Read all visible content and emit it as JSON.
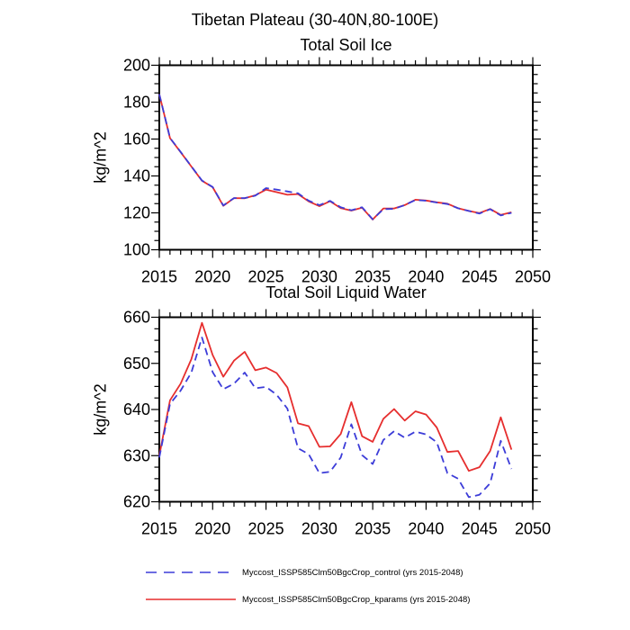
{
  "page": {
    "main_title": "Tibetan Plateau (30-40N,80-100E)"
  },
  "legend": {
    "entries": [
      {
        "label": "Myccost_ISSP585Clm50BgcCrop_control (yrs 2015-2048)",
        "color": "#3c3cd8",
        "style": "dashed"
      },
      {
        "label": "Myccost_ISSP585Clm50BgcCrop_kparams (yrs 2015-2048)",
        "color": "#e62e2e",
        "style": "solid"
      }
    ]
  },
  "chart_data": [
    {
      "type": "line",
      "title": "Total Soil Ice",
      "ylabel": "kg/m^2",
      "xlim": [
        2015,
        2050
      ],
      "ylim": [
        100,
        200
      ],
      "xticks": [
        2015,
        2020,
        2025,
        2030,
        2035,
        2040,
        2045,
        2050
      ],
      "yticks": [
        100,
        120,
        140,
        160,
        180,
        200
      ],
      "x_minor_step": 1,
      "y_minor_step": 5,
      "grid": false,
      "x": [
        2015,
        2016,
        2017,
        2018,
        2019,
        2020,
        2021,
        2022,
        2023,
        2024,
        2025,
        2026,
        2027,
        2028,
        2029,
        2030,
        2031,
        2032,
        2033,
        2034,
        2035,
        2036,
        2037,
        2038,
        2039,
        2040,
        2041,
        2042,
        2043,
        2044,
        2045,
        2046,
        2047,
        2048
      ],
      "series": [
        {
          "name": "control",
          "color": "#3c3cd8",
          "dashed": true,
          "values": [
            184.3,
            160.6,
            153.0,
            145.2,
            137.5,
            134.0,
            124.0,
            128.0,
            128.0,
            129.3,
            133.4,
            132.6,
            131.6,
            130.6,
            126.6,
            124.2,
            126.5,
            123.0,
            121.4,
            123.0,
            116.5,
            122.0,
            122.2,
            124.2,
            127.0,
            126.6,
            125.6,
            124.8,
            122.5,
            121.0,
            119.6,
            122.0,
            118.6,
            120.0
          ]
        },
        {
          "name": "kparams",
          "color": "#e62e2e",
          "dashed": false,
          "values": [
            184.3,
            160.5,
            152.9,
            145.1,
            137.4,
            133.9,
            123.8,
            128.0,
            127.9,
            129.5,
            132.6,
            131.2,
            129.8,
            130.2,
            126.2,
            123.6,
            126.3,
            122.6,
            121.2,
            122.8,
            116.4,
            122.4,
            122.4,
            124.2,
            127.1,
            126.7,
            125.7,
            125.0,
            122.5,
            121.0,
            119.9,
            122.1,
            118.9,
            120.3
          ]
        }
      ]
    },
    {
      "type": "line",
      "title": "Total Soil Liquid Water",
      "ylabel": "kg/m^2",
      "xlim": [
        2015,
        2050
      ],
      "ylim": [
        620,
        660
      ],
      "xticks": [
        2015,
        2020,
        2025,
        2030,
        2035,
        2040,
        2045,
        2050
      ],
      "yticks": [
        620,
        630,
        640,
        650,
        660
      ],
      "x_minor_step": 1,
      "y_minor_step": 2.5,
      "grid": false,
      "x": [
        2015,
        2016,
        2017,
        2018,
        2019,
        2020,
        2021,
        2022,
        2023,
        2024,
        2025,
        2026,
        2027,
        2028,
        2029,
        2030,
        2031,
        2032,
        2033,
        2034,
        2035,
        2036,
        2037,
        2038,
        2039,
        2040,
        2041,
        2042,
        2043,
        2044,
        2045,
        2046,
        2047,
        2048
      ],
      "series": [
        {
          "name": "control",
          "color": "#3c3cd8",
          "dashed": true,
          "values": [
            629.6,
            641.2,
            644.1,
            648.0,
            655.6,
            648.1,
            644.4,
            645.6,
            648.0,
            644.6,
            644.9,
            643.2,
            640.2,
            631.6,
            630.3,
            626.2,
            626.5,
            629.6,
            636.8,
            630.1,
            628.2,
            633.4,
            635.3,
            633.9,
            635.2,
            634.6,
            632.9,
            626.2,
            625.0,
            621.0,
            621.5,
            624.0,
            633.2,
            627.1
          ]
        },
        {
          "name": "kparams",
          "color": "#e62e2e",
          "dashed": false,
          "values": [
            630.0,
            642.0,
            645.6,
            650.9,
            658.8,
            651.8,
            647.1,
            650.6,
            652.5,
            648.5,
            649.1,
            647.9,
            644.8,
            637.0,
            636.4,
            631.9,
            632.0,
            634.7,
            641.6,
            634.2,
            633.0,
            638.0,
            640.1,
            637.6,
            639.6,
            638.9,
            636.1,
            630.8,
            631.0,
            626.7,
            627.5,
            631.0,
            638.3,
            631.3
          ]
        }
      ]
    }
  ]
}
